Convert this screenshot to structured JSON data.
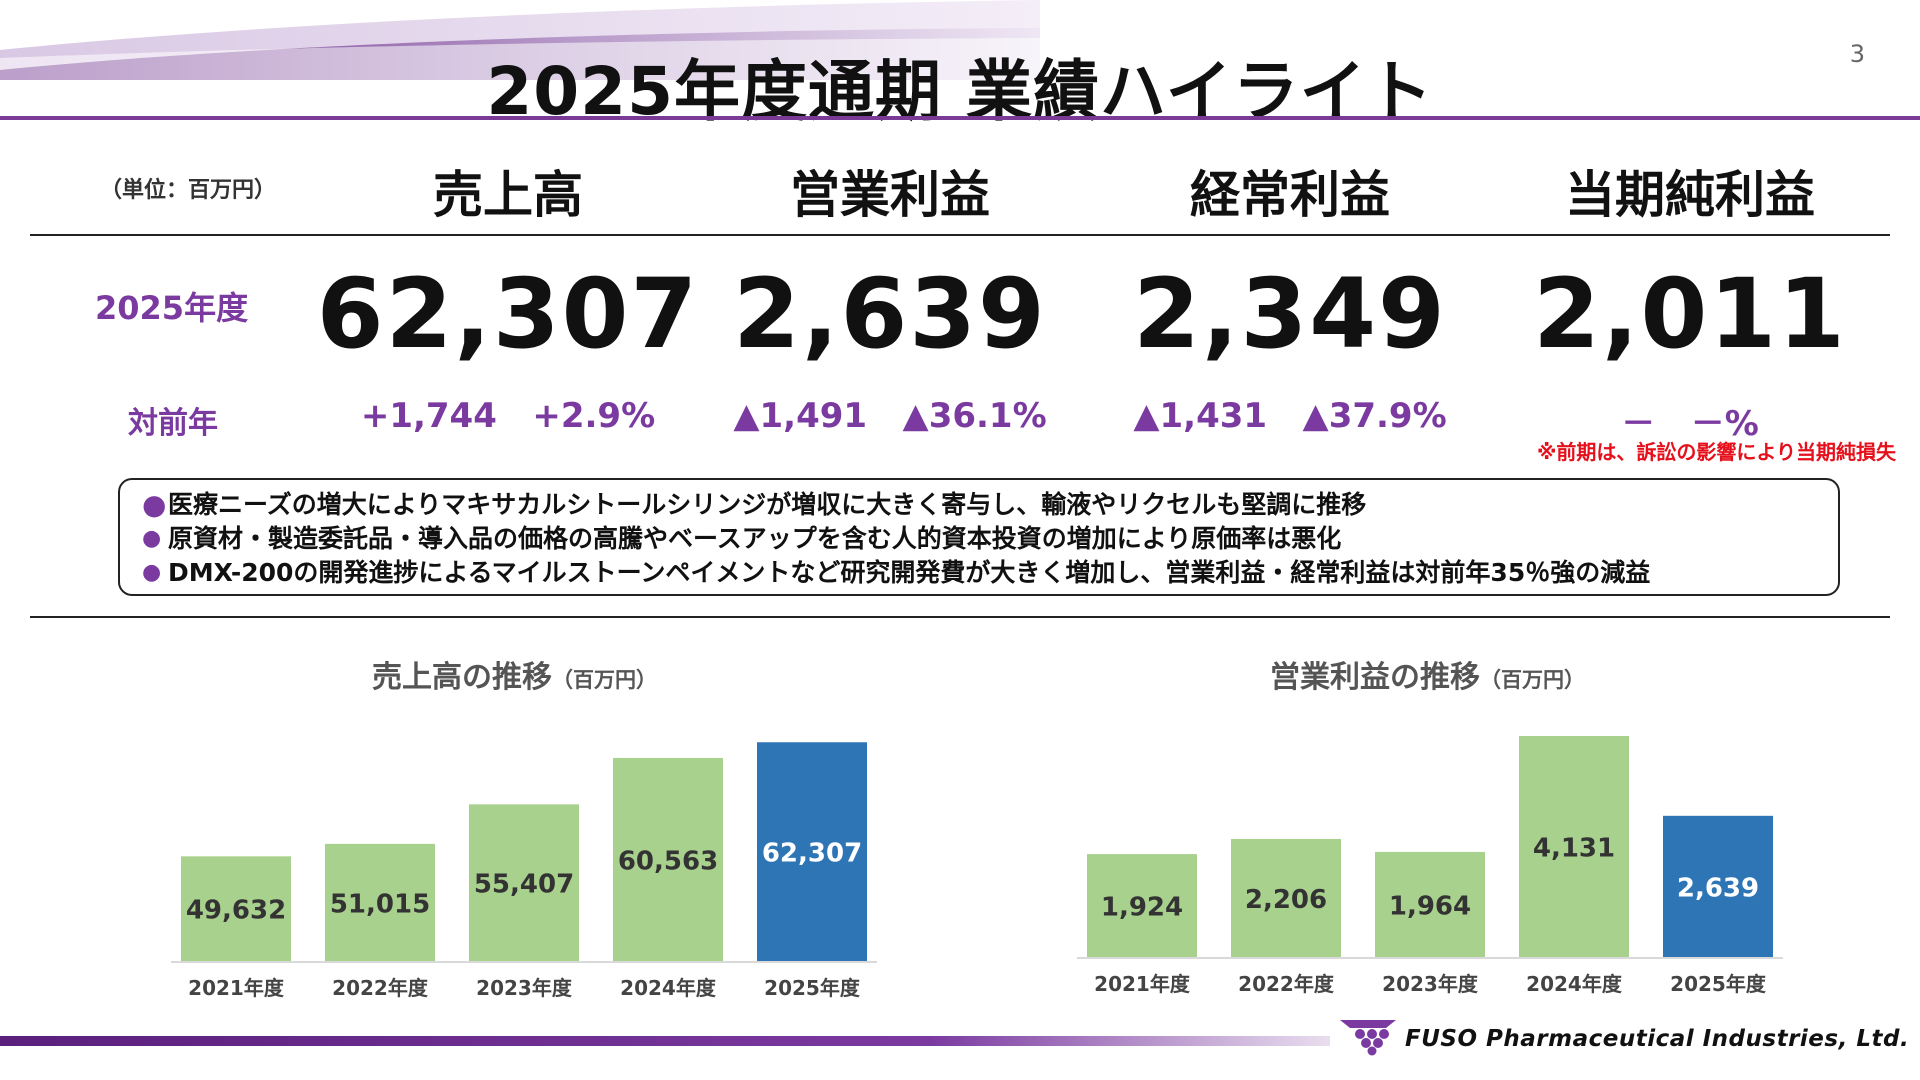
{
  "header": {
    "title": "2025年度通期 業績ハイライト",
    "page_number": "3"
  },
  "kpi": {
    "unit_label": "（単位：百万円）",
    "row_year_label": "2025年度",
    "row_yoy_label": "対前年",
    "metrics": [
      {
        "name": "売上高",
        "value": "62,307",
        "yoy": "+1,744   +2.9%"
      },
      {
        "name": "営業利益",
        "value": "2,639",
        "yoy": "▲1,491   ▲36.1%"
      },
      {
        "name": "経常利益",
        "value": "2,349",
        "yoy": "▲1,431   ▲37.9%"
      },
      {
        "name": "当期純利益",
        "value": "2,011",
        "yoy": "－   －%"
      }
    ],
    "footnote": "※前期は、訴訟の影響により当期純損失"
  },
  "summary": [
    "医療ニーズの増大によりマキサカルシトールシリンジが増収に大きく寄与し、輸液やリクセルも堅調に推移",
    "原資材・製造委託品・導入品の価格の高騰やベースアップを含む人的資本投資の増加により原価率は悪化",
    "DMX-200の開発進捗によるマイルストーンペイメントなど研究開発費が大きく増加し、営業利益・経常利益は対前年35％強の減益"
  ],
  "footer": {
    "company": "FUSO Pharmaceutical Industries, Ltd."
  },
  "colors": {
    "accent": "#7b3aa0",
    "bar_past": "#a9d18e",
    "bar_current": "#2e75b6",
    "warning": "#e5101b"
  },
  "chart_data": [
    {
      "type": "bar",
      "title": "売上高の推移",
      "unit": "（百万円）",
      "categories": [
        "2021年度",
        "2022年度",
        "2023年度",
        "2024年度",
        "2025年度"
      ],
      "values": [
        49632,
        51015,
        55407,
        60563,
        62307
      ],
      "labels": [
        "49,632",
        "51,015",
        "55,407",
        "60,563",
        "62,307"
      ],
      "highlight_index": 4,
      "ylim": [
        38000,
        63000
      ],
      "grid": false,
      "legend": "none"
    },
    {
      "type": "bar",
      "title": "営業利益の推移",
      "unit": "（百万円）",
      "categories": [
        "2021年度",
        "2022年度",
        "2023年度",
        "2024年度",
        "2025年度"
      ],
      "values": [
        1924,
        2206,
        1964,
        4131,
        2639
      ],
      "labels": [
        "1,924",
        "2,206",
        "1,964",
        "4,131",
        "2,639"
      ],
      "highlight_index": 4,
      "ylim": [
        0,
        4131
      ],
      "grid": false,
      "legend": "none"
    }
  ]
}
